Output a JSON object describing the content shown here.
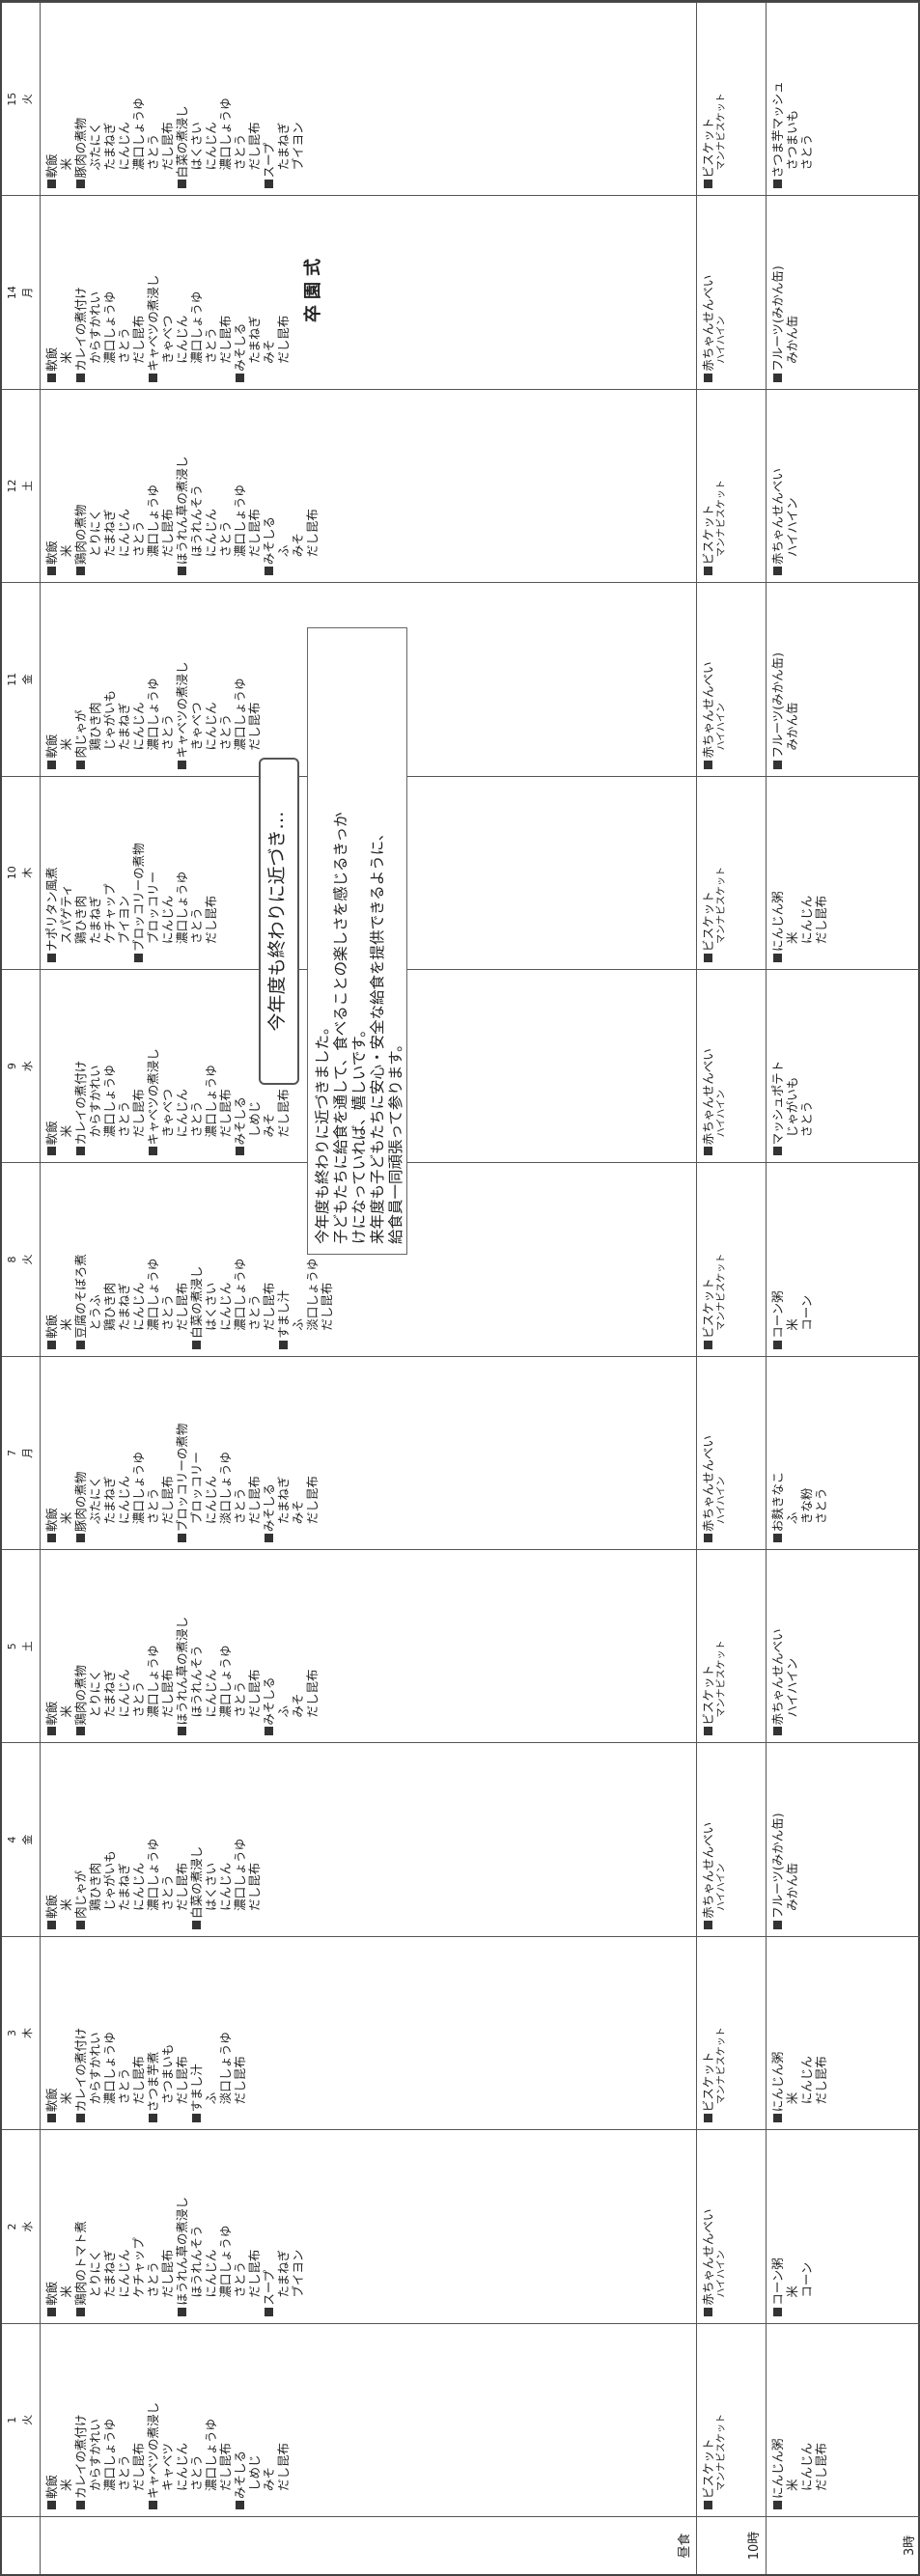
{
  "row_labels": {
    "lunch": "昼食",
    "am": "10時",
    "pm": "3時"
  },
  "days": [
    {
      "date": "1",
      "weekday": "火",
      "lunch": [
        {
          "name": "軟飯",
          "items": [
            "米"
          ]
        },
        {
          "name": "カレイの煮付け",
          "items": [
            "からすかれい",
            "濃口しょうゆ",
            "さとう",
            "だし昆布"
          ]
        },
        {
          "name": "キャベツの煮浸し",
          "items": [
            "キャベツ",
            "にんじん",
            "さとう",
            "濃口しょうゆ",
            "だし昆布"
          ]
        },
        {
          "name": "みそしる",
          "items": [
            "しめじ",
            "みそ",
            "だし昆布"
          ]
        }
      ],
      "am": {
        "name": "ビスケット",
        "items": [
          "マンナビスケット"
        ]
      },
      "pm": {
        "name": "にんじん粥",
        "items": [
          "米",
          "にんじん",
          "だし昆布"
        ]
      }
    },
    {
      "date": "2",
      "weekday": "水",
      "lunch": [
        {
          "name": "軟飯",
          "items": [
            "米"
          ]
        },
        {
          "name": "鶏肉のトマト煮",
          "items": [
            "とりにく",
            "たまねぎ",
            "にんじん",
            "ケチャップ",
            "さとう",
            "だし昆布"
          ]
        },
        {
          "name": "ほうれん草の煮浸し",
          "items": [
            "ほうれんそう",
            "にんじん",
            "濃口しょうゆ",
            "さとう",
            "だし昆布"
          ]
        },
        {
          "name": "スープ",
          "items": [
            "たまねぎ",
            "ブイヨン"
          ]
        }
      ],
      "am": {
        "name": "赤ちゃんせんべい",
        "items": [
          "ハイハイン"
        ]
      },
      "pm": {
        "name": "コーン粥",
        "items": [
          "米",
          "コーン"
        ]
      }
    },
    {
      "date": "3",
      "weekday": "木",
      "lunch": [
        {
          "name": "軟飯",
          "items": [
            "米"
          ]
        },
        {
          "name": "カレイの煮付け",
          "items": [
            "からすかれい",
            "濃口しょうゆ",
            "さとう",
            "だし昆布"
          ]
        },
        {
          "name": "さつま芋煮",
          "items": [
            "さつまいも",
            "だし昆布"
          ]
        },
        {
          "name": "すまし汁",
          "items": [
            "ふ",
            "淡口しょうゆ",
            "だし昆布"
          ]
        }
      ],
      "am": {
        "name": "ビスケット",
        "items": [
          "マンナビスケット"
        ]
      },
      "pm": {
        "name": "にんじん粥",
        "items": [
          "米",
          "にんじん",
          "だし昆布"
        ]
      }
    },
    {
      "date": "4",
      "weekday": "金",
      "lunch": [
        {
          "name": "軟飯",
          "items": [
            "米"
          ]
        },
        {
          "name": "肉じゃが",
          "items": [
            "鶏ひき肉",
            "じゃがいも",
            "たまねぎ",
            "にんじん",
            "濃口しょうゆ",
            "さとう",
            "だし昆布"
          ]
        },
        {
          "name": "白菜の煮浸し",
          "items": [
            "はくさい",
            "にんじん",
            "濃口しょうゆ",
            "だし昆布"
          ]
        }
      ],
      "am": {
        "name": "赤ちゃんせんべい",
        "items": [
          "ハイハイン"
        ]
      },
      "pm": {
        "name": "フルーツ(みかん缶)",
        "items": [
          "みかん缶"
        ]
      }
    },
    {
      "date": "5",
      "weekday": "土",
      "lunch": [
        {
          "name": "軟飯",
          "items": [
            "米"
          ]
        },
        {
          "name": "鶏肉の煮物",
          "items": [
            "とりにく",
            "たまねぎ",
            "にんじん",
            "さとう",
            "濃口しょうゆ",
            "だし昆布"
          ]
        },
        {
          "name": "ほうれん草の煮浸し",
          "items": [
            "ほうれんそう",
            "にんじん",
            "濃口しょうゆ",
            "さとう",
            "だし昆布"
          ]
        },
        {
          "name": "みそしる",
          "items": [
            "ふ",
            "みそ",
            "だし昆布"
          ]
        }
      ],
      "am": {
        "name": "ビスケット",
        "items": [
          "マンナビスケット"
        ]
      },
      "pm": {
        "name": "赤ちゃんせんべい",
        "items": [
          "ハイハイン"
        ]
      }
    },
    {
      "date": "7",
      "weekday": "月",
      "lunch": [
        {
          "name": "軟飯",
          "items": [
            "米"
          ]
        },
        {
          "name": "豚肉の煮物",
          "items": [
            "ぶたにく",
            "たまねぎ",
            "にんじん",
            "濃口しょうゆ",
            "さとう",
            "だし昆布"
          ]
        },
        {
          "name": "ブロッコリーの煮物",
          "items": [
            "ブロッコリー",
            "にんじん",
            "淡口しょうゆ",
            "さとう",
            "だし昆布"
          ]
        },
        {
          "name": "みそしる",
          "items": [
            "たまねぎ",
            "みそ",
            "だし昆布"
          ]
        }
      ],
      "am": {
        "name": "赤ちゃんせんべい",
        "items": [
          "ハイハイン"
        ]
      },
      "pm": {
        "name": "お麩きなこ",
        "items": [
          "ふ",
          "きな粉",
          "さとう"
        ]
      }
    },
    {
      "date": "8",
      "weekday": "火",
      "lunch": [
        {
          "name": "軟飯",
          "items": [
            "米"
          ]
        },
        {
          "name": "豆腐のそぼろ煮",
          "items": [
            "とうふ",
            "鶏ひき肉",
            "たまねぎ",
            "にんじん",
            "濃口しょうゆ",
            "さとう",
            "だし昆布"
          ]
        },
        {
          "name": "白菜の煮浸し",
          "items": [
            "はくさい",
            "にんじん",
            "濃口しょうゆ",
            "さとう",
            "だし昆布"
          ]
        },
        {
          "name": "すまし汁",
          "items": [
            "ふ",
            "淡口しょうゆ",
            "だし昆布"
          ]
        }
      ],
      "am": {
        "name": "ビスケット",
        "items": [
          "マンナビスケット"
        ]
      },
      "pm": {
        "name": "コーン粥",
        "items": [
          "米",
          "コーン"
        ]
      }
    },
    {
      "date": "9",
      "weekday": "水",
      "lunch": [
        {
          "name": "軟飯",
          "items": [
            "米"
          ]
        },
        {
          "name": "カレイの煮付け",
          "items": [
            "からすかれい",
            "濃口しょうゆ",
            "さとう",
            "だし昆布"
          ]
        },
        {
          "name": "キャベツの煮浸し",
          "items": [
            "きゃべつ",
            "にんじん",
            "さとう",
            "濃口しょうゆ",
            "だし昆布"
          ]
        },
        {
          "name": "みそしる",
          "items": [
            "しめじ",
            "みそ",
            "だし昆布"
          ]
        }
      ],
      "am": {
        "name": "赤ちゃんせんべい",
        "items": [
          "ハイハイン"
        ]
      },
      "pm": {
        "name": "マッシュポテト",
        "items": [
          "じゃがいも",
          "さとう"
        ]
      }
    },
    {
      "date": "10",
      "weekday": "木",
      "lunch": [
        {
          "name": "ナポリタン風煮",
          "items": [
            "スパゲティ",
            "鶏ひき肉",
            "たまねぎ",
            "ケチャップ",
            "ブイヨン"
          ]
        },
        {
          "name": "ブロッコリーの煮物",
          "items": [
            "ブロッコリー",
            "にんじん",
            "濃口しょうゆ",
            "さとう",
            "だし昆布"
          ]
        }
      ],
      "am": {
        "name": "ビスケット",
        "items": [
          "マンナビスケット"
        ]
      },
      "pm": {
        "name": "にんじん粥",
        "items": [
          "米",
          "にんじん",
          "だし昆布"
        ]
      }
    },
    {
      "date": "11",
      "weekday": "金",
      "lunch": [
        {
          "name": "軟飯",
          "items": [
            "米"
          ]
        },
        {
          "name": "肉じゃが",
          "items": [
            "鶏ひき肉",
            "じゃがいも",
            "たまねぎ",
            "にんじん",
            "濃口しょうゆ",
            "さとう"
          ]
        },
        {
          "name": "キャベツの煮浸し",
          "items": [
            "きゃべつ",
            "にんじん",
            "さとう",
            "濃口しょうゆ",
            "だし昆布"
          ]
        }
      ],
      "am": {
        "name": "赤ちゃんせんべい",
        "items": [
          "ハイハイン"
        ]
      },
      "pm": {
        "name": "フルーツ(みかん缶)",
        "items": [
          "みかん缶"
        ]
      }
    },
    {
      "date": "12",
      "weekday": "土",
      "lunch": [
        {
          "name": "軟飯",
          "items": [
            "米"
          ]
        },
        {
          "name": "鶏肉の煮物",
          "items": [
            "とりにく",
            "たまねぎ",
            "にんじん",
            "さとう",
            "濃口しょうゆ",
            "だし昆布"
          ]
        },
        {
          "name": "ほうれん草の煮浸し",
          "items": [
            "ほうれんそう",
            "にんじん",
            "さとう",
            "濃口しょうゆ",
            "だし昆布"
          ]
        },
        {
          "name": "みそしる",
          "items": [
            "ふ",
            "みそ",
            "だし昆布"
          ]
        }
      ],
      "am": {
        "name": "ビスケット",
        "items": [
          "マンナビスケット"
        ]
      },
      "pm": {
        "name": "赤ちゃんせんべい",
        "items": [
          "ハイハイン"
        ]
      }
    },
    {
      "date": "14",
      "weekday": "月",
      "lunch": [
        {
          "name": "軟飯",
          "items": [
            "米"
          ]
        },
        {
          "name": "カレイの煮付け",
          "items": [
            "からすかれい",
            "濃口しょうゆ",
            "さとう",
            "だし昆布"
          ]
        },
        {
          "name": "キャベツの煮浸し",
          "items": [
            "きゃべつ",
            "にんじん",
            "濃口しょうゆ",
            "さとう",
            "だし昆布"
          ]
        },
        {
          "name": "みそしる",
          "items": [
            "たまねぎ",
            "みそ",
            "だし昆布"
          ]
        }
      ],
      "am": {
        "name": "赤ちゃんせんべい",
        "items": [
          "ハイハイン"
        ]
      },
      "pm": {
        "name": "フルーツ(みかん缶)",
        "items": [
          "みかん缶"
        ]
      }
    },
    {
      "date": "15",
      "weekday": "火",
      "lunch": [
        {
          "name": "軟飯",
          "items": [
            "米"
          ]
        },
        {
          "name": "豚肉の煮物",
          "items": [
            "ぶたにく",
            "たまねぎ",
            "にんじん",
            "濃口しょうゆ",
            "さとう",
            "だし昆布"
          ]
        },
        {
          "name": "白菜の煮浸し",
          "items": [
            "はくさい",
            "にんじん",
            "濃口しょうゆ",
            "さとう",
            "だし昆布"
          ]
        },
        {
          "name": "スープ",
          "items": [
            "たまねぎ",
            "ブイヨン"
          ]
        }
      ],
      "am": {
        "name": "ビスケット",
        "items": [
          "マンナビスケット"
        ]
      },
      "pm": {
        "name": "さつま芋マッシュ",
        "items": [
          "さつまいも",
          "さとう"
        ]
      }
    }
  ],
  "message": {
    "title": "今年度も終わりに近づき…",
    "lines": [
      "今年度も終わりに近づきました。",
      "子どもたちに給食を通して、食べることの楽しさを感じるきっか",
      "けになっていれば、嬉しいです。",
      "来年度も子どもたちに安心・安全な給食を提供できるように、",
      "給食員一同頑張って参ります。"
    ]
  },
  "event": "卒園式"
}
